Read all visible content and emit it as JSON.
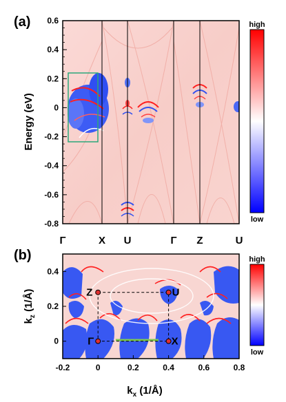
{
  "panel_a": {
    "label": "(a)",
    "y_axis_label": "Energy (eV)",
    "y_ticks": [
      "-0.8",
      "-0.6",
      "-0.4",
      "-0.2",
      "0",
      "0.2",
      "0.4",
      "0.6"
    ],
    "k_path_labels": [
      "Γ",
      "X",
      "U",
      "Γ",
      "Z",
      "U"
    ],
    "colorbar": {
      "high": "high",
      "low": "low"
    }
  },
  "panel_b": {
    "label": "(b)",
    "x_axis_label": "k",
    "x_axis_sub": "x",
    "x_axis_unit": " (1/Å)",
    "y_axis_label": "k",
    "y_axis_sub": "z",
    "y_axis_unit": " (1/Å)",
    "x_ticks": [
      "-0.2",
      "0",
      "0.2",
      "0.4",
      "0.6",
      "0.8"
    ],
    "y_ticks": [
      "0",
      "0.2",
      "0.4"
    ],
    "points": [
      "Γ",
      "X",
      "Z",
      "U"
    ],
    "colorbar": {
      "high": "high",
      "low": "low"
    }
  },
  "chart_data": [
    {
      "type": "heatmap",
      "title": "",
      "ylabel": "Energy (eV)",
      "ylim": [
        -0.8,
        0.6
      ],
      "x_labels": [
        "Γ",
        "X",
        "U",
        "Γ",
        "Z",
        "U"
      ],
      "colormap": [
        "#0000ff",
        "#ffffff",
        "#ff0000"
      ],
      "colorbar_labels": [
        "low",
        "high"
      ]
    },
    {
      "type": "heatmap",
      "title": "",
      "xlabel": "kx (1/Å)",
      "ylabel": "kz (1/Å)",
      "xlim": [
        -0.2,
        0.8
      ],
      "ylim": [
        -0.1,
        0.5
      ],
      "points": [
        {
          "label": "Γ",
          "x": 0,
          "y": 0
        },
        {
          "label": "X",
          "x": 0.4,
          "y": 0
        },
        {
          "label": "Z",
          "x": 0,
          "y": 0.28
        },
        {
          "label": "U",
          "x": 0.4,
          "y": 0.28
        }
      ],
      "colormap": [
        "#0000ff",
        "#ffffff",
        "#ff0000"
      ],
      "colorbar_labels": [
        "low",
        "high"
      ]
    }
  ]
}
